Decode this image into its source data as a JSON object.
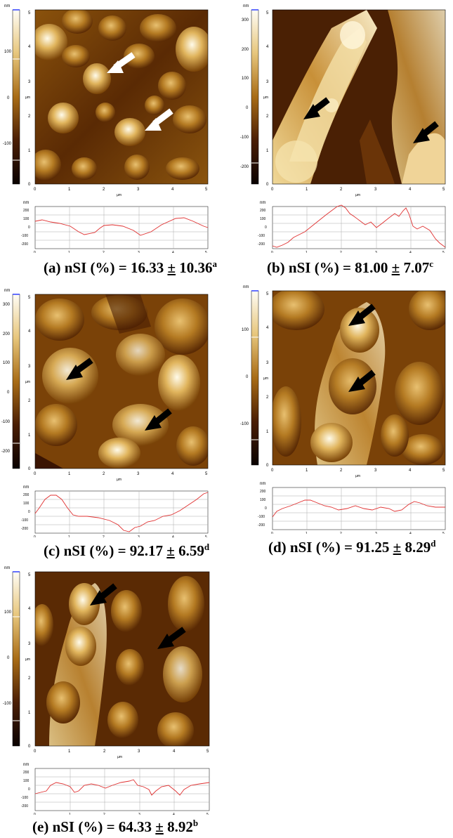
{
  "colors": {
    "scale_low": "#140500",
    "scale_mid": "#a06a14",
    "scale_high": "#fffaf0",
    "profile_line": "#e03030",
    "arrow_white": "#ffffff",
    "arrow_black": "#000000"
  },
  "panels": [
    {
      "id": "a",
      "colorbar": {
        "unit": "nm",
        "ticks": [
          "100",
          "0",
          "-100"
        ]
      },
      "image": {
        "y_ticks": [
          "5",
          "4",
          "3",
          "2",
          "1",
          "0"
        ],
        "x_ticks": [
          "0",
          "1",
          "2",
          "3",
          "4",
          "5"
        ],
        "x_unit": "µm",
        "y_unit": "µm",
        "arrow_color": "white"
      },
      "profile": {
        "unit": "nm",
        "y_ticks": [
          "200",
          "100",
          "0",
          "-100",
          "-200"
        ],
        "x_ticks": [
          "0",
          "1",
          "2",
          "3",
          "4",
          "5"
        ],
        "x_unit": "µm"
      },
      "caption": {
        "letter": "(a)",
        "text": "nSI (%) = 16.33 ",
        "pm": "±",
        "value": " 10.36",
        "sup": "a"
      }
    },
    {
      "id": "b",
      "colorbar": {
        "unit": "nm",
        "ticks": [
          "300",
          "200",
          "100",
          "0",
          "-100",
          "-200"
        ]
      },
      "image": {
        "y_ticks": [
          "5",
          "4",
          "3",
          "2",
          "1",
          "0"
        ],
        "x_ticks": [
          "0",
          "1",
          "2",
          "3",
          "4",
          "5"
        ],
        "x_unit": "µm",
        "y_unit": "µm",
        "arrow_color": "black"
      },
      "profile": {
        "unit": "nm",
        "y_ticks": [
          "200",
          "100",
          "0",
          "-100",
          "-200"
        ],
        "x_ticks": [
          "0",
          "1",
          "2",
          "3",
          "4",
          "5"
        ],
        "x_unit": "µm"
      },
      "caption": {
        "letter": "(b)",
        "text": "nSI (%) = 81.00 ",
        "pm": "±",
        "value": " 7.07",
        "sup": "c"
      }
    },
    {
      "id": "c",
      "colorbar": {
        "unit": "nm",
        "ticks": [
          "300",
          "200",
          "100",
          "0",
          "-100",
          "-200"
        ]
      },
      "image": {
        "y_ticks": [
          "5",
          "4",
          "3",
          "2",
          "1",
          "0"
        ],
        "x_ticks": [
          "0",
          "1",
          "2",
          "3",
          "4",
          "5"
        ],
        "x_unit": "µm",
        "y_unit": "µm",
        "arrow_color": "black"
      },
      "profile": {
        "unit": "nm",
        "y_ticks": [
          "200",
          "100",
          "0",
          "-100",
          "-200"
        ],
        "x_ticks": [
          "0",
          "1",
          "2",
          "3",
          "4",
          "5"
        ],
        "x_unit": "µm"
      },
      "caption": {
        "letter": "(c)",
        "text": "nSI (%) = 92.17 ",
        "pm": "±",
        "value": " 6.59",
        "sup": "d"
      }
    },
    {
      "id": "d",
      "colorbar": {
        "unit": "nm",
        "ticks": [
          "100",
          "0",
          "-100"
        ]
      },
      "image": {
        "y_ticks": [
          "5",
          "4",
          "3",
          "2",
          "1",
          "0"
        ],
        "x_ticks": [
          "0",
          "1",
          "2",
          "3",
          "4",
          "5"
        ],
        "x_unit": "µm",
        "y_unit": "µm",
        "arrow_color": "black"
      },
      "profile": {
        "unit": "nm",
        "y_ticks": [
          "200",
          "100",
          "0",
          "-100",
          "-200"
        ],
        "x_ticks": [
          "0",
          "1",
          "2",
          "3",
          "4",
          "5"
        ],
        "x_unit": "µm"
      },
      "caption": {
        "letter": "(d)",
        "text": "nSI (%) = 91.25 ",
        "pm": "±",
        "value": " 8.29",
        "sup": "d"
      }
    },
    {
      "id": "e",
      "colorbar": {
        "unit": "nm",
        "ticks": [
          "100",
          "0",
          "-100"
        ]
      },
      "image": {
        "y_ticks": [
          "5",
          "4",
          "3",
          "2",
          "1",
          "0"
        ],
        "x_ticks": [
          "0",
          "1",
          "2",
          "3",
          "4",
          "5"
        ],
        "x_unit": "µm",
        "y_unit": "µm",
        "arrow_color": "black"
      },
      "profile": {
        "unit": "nm",
        "y_ticks": [
          "200",
          "100",
          "0",
          "-100",
          "-200"
        ],
        "x_ticks": [
          "0",
          "1",
          "2",
          "3",
          "4",
          "5"
        ],
        "x_unit": "µm"
      },
      "caption": {
        "letter": "(e)",
        "text": "nSI (%) = 64.33 ",
        "pm": "±",
        "value": " 8.92",
        "sup": "b"
      }
    }
  ]
}
